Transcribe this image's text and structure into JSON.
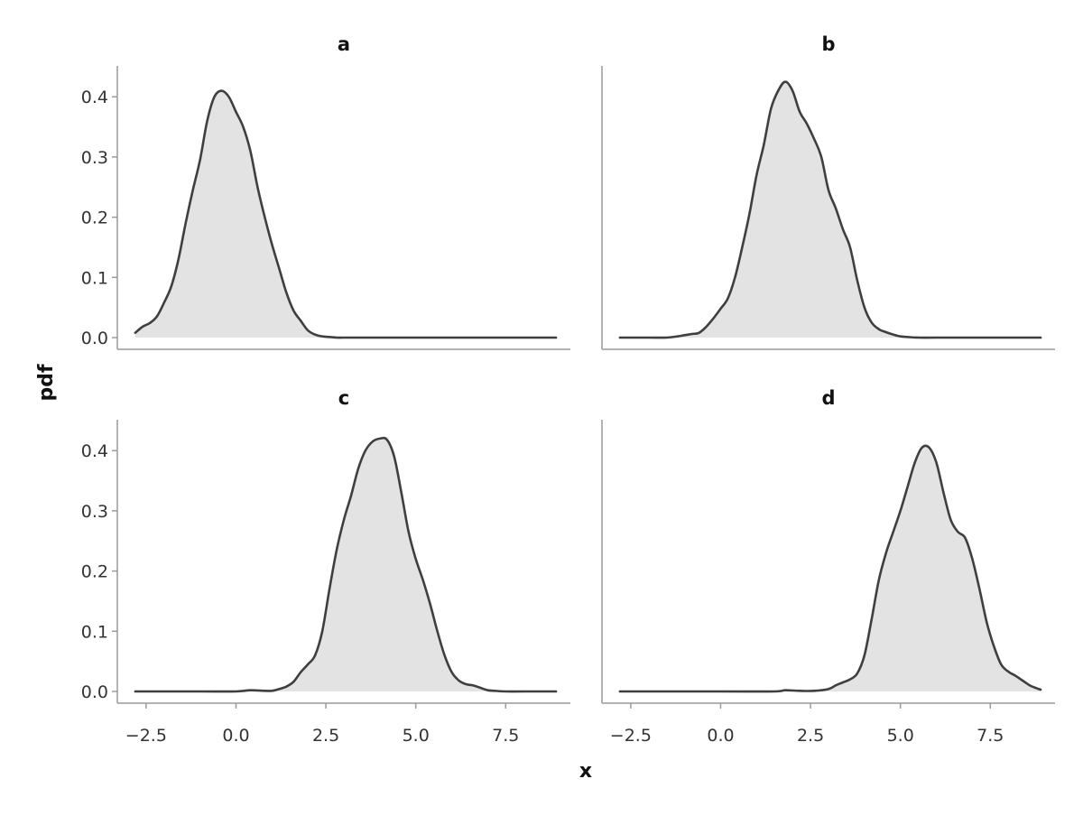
{
  "chart_data": {
    "type": "area",
    "xlabel": "x",
    "ylabel": "pdf",
    "xlim": [
      -3.3,
      9.3
    ],
    "ylim": [
      -0.02,
      0.45
    ],
    "x_ticks": [
      -2.5,
      0.0,
      2.5,
      5.0,
      7.5
    ],
    "x_tick_labels": [
      "−2.5",
      "0.0",
      "2.5",
      "5.0",
      "7.5"
    ],
    "y_ticks": [
      0.0,
      0.1,
      0.2,
      0.3,
      0.4
    ],
    "y_tick_labels": [
      "0.0",
      "0.1",
      "0.2",
      "0.3",
      "0.4"
    ],
    "grid": false,
    "line_color": "#3f3f3f",
    "fill_color": "#e3e3e3",
    "layout": "2x2 facets, shared x axis in bottom row, shared y axis in left column",
    "panels": [
      {
        "title": "a",
        "x": [
          -2.8,
          -2.6,
          -2.4,
          -2.2,
          -2.0,
          -1.8,
          -1.6,
          -1.4,
          -1.2,
          -1.0,
          -0.8,
          -0.6,
          -0.4,
          -0.2,
          0.0,
          0.2,
          0.4,
          0.6,
          0.8,
          1.0,
          1.2,
          1.4,
          1.6,
          1.8,
          2.0,
          2.2,
          2.4,
          2.6,
          2.8,
          3.0,
          3.5,
          4.0,
          5.0,
          6.0,
          7.0,
          8.0,
          8.9
        ],
        "y": [
          0.008,
          0.018,
          0.024,
          0.035,
          0.058,
          0.085,
          0.13,
          0.19,
          0.245,
          0.295,
          0.36,
          0.4,
          0.41,
          0.4,
          0.375,
          0.35,
          0.31,
          0.25,
          0.2,
          0.155,
          0.115,
          0.075,
          0.045,
          0.028,
          0.012,
          0.005,
          0.002,
          0.001,
          0.0,
          0.0,
          0.0,
          0.0,
          0.0,
          0.0,
          0.0,
          0.0,
          0.0
        ]
      },
      {
        "title": "b",
        "x": [
          -2.8,
          -2.0,
          -1.5,
          -1.2,
          -1.0,
          -0.8,
          -0.6,
          -0.4,
          -0.2,
          0.0,
          0.2,
          0.4,
          0.6,
          0.8,
          1.0,
          1.2,
          1.4,
          1.6,
          1.8,
          2.0,
          2.2,
          2.4,
          2.6,
          2.8,
          3.0,
          3.2,
          3.4,
          3.6,
          3.8,
          4.0,
          4.2,
          4.4,
          4.6,
          4.8,
          5.0,
          5.2,
          5.5,
          6.0,
          7.0,
          8.0,
          8.9
        ],
        "y": [
          0.0,
          0.0,
          0.0,
          0.002,
          0.004,
          0.006,
          0.008,
          0.018,
          0.032,
          0.048,
          0.065,
          0.1,
          0.15,
          0.205,
          0.27,
          0.32,
          0.38,
          0.41,
          0.425,
          0.41,
          0.375,
          0.355,
          0.33,
          0.3,
          0.245,
          0.215,
          0.18,
          0.15,
          0.095,
          0.05,
          0.025,
          0.014,
          0.009,
          0.005,
          0.002,
          0.001,
          0.0,
          0.0,
          0.0,
          0.0,
          0.0
        ]
      },
      {
        "title": "c",
        "x": [
          -2.8,
          -1.0,
          0.0,
          0.4,
          0.8,
          1.0,
          1.2,
          1.4,
          1.6,
          1.8,
          2.0,
          2.2,
          2.4,
          2.6,
          2.8,
          3.0,
          3.2,
          3.4,
          3.6,
          3.8,
          4.0,
          4.2,
          4.4,
          4.6,
          4.8,
          5.0,
          5.2,
          5.4,
          5.6,
          5.8,
          6.0,
          6.2,
          6.4,
          6.6,
          6.8,
          7.0,
          7.2,
          7.5,
          8.0,
          8.9
        ],
        "y": [
          0.0,
          0.0,
          0.0,
          0.002,
          0.001,
          0.001,
          0.004,
          0.008,
          0.016,
          0.032,
          0.045,
          0.06,
          0.1,
          0.17,
          0.235,
          0.285,
          0.325,
          0.37,
          0.4,
          0.415,
          0.42,
          0.418,
          0.39,
          0.33,
          0.265,
          0.22,
          0.185,
          0.145,
          0.1,
          0.06,
          0.032,
          0.018,
          0.012,
          0.01,
          0.006,
          0.002,
          0.001,
          0.0,
          0.0,
          0.0
        ]
      },
      {
        "title": "d",
        "x": [
          -2.8,
          0.0,
          1.5,
          1.8,
          2.2,
          2.6,
          3.0,
          3.2,
          3.4,
          3.6,
          3.8,
          4.0,
          4.2,
          4.4,
          4.6,
          4.8,
          5.0,
          5.2,
          5.4,
          5.6,
          5.8,
          6.0,
          6.2,
          6.4,
          6.6,
          6.8,
          7.0,
          7.2,
          7.4,
          7.6,
          7.8,
          8.0,
          8.2,
          8.4,
          8.6,
          8.8,
          8.9
        ],
        "y": [
          0.0,
          0.0,
          0.0,
          0.002,
          0.001,
          0.001,
          0.004,
          0.01,
          0.015,
          0.02,
          0.03,
          0.06,
          0.12,
          0.185,
          0.23,
          0.265,
          0.3,
          0.34,
          0.38,
          0.405,
          0.405,
          0.38,
          0.33,
          0.285,
          0.265,
          0.255,
          0.22,
          0.17,
          0.115,
          0.075,
          0.045,
          0.033,
          0.026,
          0.018,
          0.01,
          0.005,
          0.003
        ]
      }
    ]
  }
}
